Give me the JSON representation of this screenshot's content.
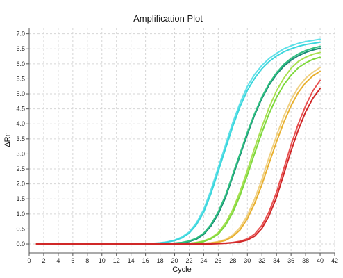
{
  "chart_data": {
    "type": "line",
    "title": "Amplification Plot",
    "xlabel": "Cycle",
    "ylabel": "ΔRn",
    "xlim": [
      0,
      42
    ],
    "ylim": [
      -0.3,
      7.2
    ],
    "xticks": [
      0,
      2,
      4,
      6,
      8,
      10,
      12,
      14,
      16,
      18,
      20,
      22,
      24,
      26,
      28,
      30,
      32,
      34,
      36,
      38,
      40,
      42
    ],
    "yticks": [
      0.0,
      0.5,
      1.0,
      1.5,
      2.0,
      2.5,
      3.0,
      3.5,
      4.0,
      4.5,
      5.0,
      5.5,
      6.0,
      6.5,
      7.0
    ],
    "grid": true,
    "series": [
      {
        "color": "#5ee0e8",
        "x": [
          1,
          2,
          3,
          4,
          5,
          6,
          7,
          8,
          9,
          10,
          11,
          12,
          13,
          14,
          15,
          16,
          17,
          18,
          19,
          20,
          21,
          22,
          23,
          24,
          25,
          26,
          27,
          28,
          29,
          30,
          31,
          32,
          33,
          34,
          35,
          36,
          37,
          38,
          39,
          40
        ],
        "values": [
          0,
          0,
          0,
          0,
          0,
          0,
          0,
          0,
          0,
          0,
          0,
          0,
          0,
          0,
          0,
          0,
          0.02,
          0.04,
          0.07,
          0.13,
          0.23,
          0.4,
          0.7,
          1.15,
          1.8,
          2.55,
          3.3,
          4.05,
          4.7,
          5.25,
          5.65,
          5.95,
          6.18,
          6.35,
          6.5,
          6.6,
          6.68,
          6.74,
          6.78,
          6.82
        ]
      },
      {
        "color": "#3ad6dc",
        "x": [
          1,
          2,
          3,
          4,
          5,
          6,
          7,
          8,
          9,
          10,
          11,
          12,
          13,
          14,
          15,
          16,
          17,
          18,
          19,
          20,
          21,
          22,
          23,
          24,
          25,
          26,
          27,
          28,
          29,
          30,
          31,
          32,
          33,
          34,
          35,
          36,
          37,
          38,
          39,
          40
        ],
        "values": [
          0,
          0,
          0,
          0,
          0,
          0,
          0,
          0,
          0,
          0,
          0,
          0,
          0,
          0,
          0,
          0,
          0.01,
          0.03,
          0.06,
          0.11,
          0.2,
          0.36,
          0.64,
          1.06,
          1.68,
          2.42,
          3.18,
          3.92,
          4.58,
          5.12,
          5.52,
          5.84,
          6.08,
          6.26,
          6.4,
          6.5,
          6.58,
          6.64,
          6.68,
          6.72
        ]
      },
      {
        "color": "#1a8a74",
        "x": [
          1,
          2,
          3,
          4,
          5,
          6,
          7,
          8,
          9,
          10,
          11,
          12,
          13,
          14,
          15,
          16,
          17,
          18,
          19,
          20,
          21,
          22,
          23,
          24,
          25,
          26,
          27,
          28,
          29,
          30,
          31,
          32,
          33,
          34,
          35,
          36,
          37,
          38,
          39,
          40
        ],
        "values": [
          0,
          0,
          0,
          0,
          0,
          0,
          0,
          0,
          0,
          0,
          0,
          0,
          0,
          0,
          0,
          0,
          0,
          0,
          0.01,
          0.02,
          0.04,
          0.08,
          0.16,
          0.32,
          0.6,
          1.0,
          1.55,
          2.25,
          2.95,
          3.65,
          4.3,
          4.85,
          5.3,
          5.65,
          5.92,
          6.12,
          6.27,
          6.38,
          6.46,
          6.52
        ]
      },
      {
        "color": "#2ec080",
        "x": [
          1,
          2,
          3,
          4,
          5,
          6,
          7,
          8,
          9,
          10,
          11,
          12,
          13,
          14,
          15,
          16,
          17,
          18,
          19,
          20,
          21,
          22,
          23,
          24,
          25,
          26,
          27,
          28,
          29,
          30,
          31,
          32,
          33,
          34,
          35,
          36,
          37,
          38,
          39,
          40
        ],
        "values": [
          0,
          0,
          0,
          0,
          0,
          0,
          0,
          0,
          0,
          0,
          0,
          0,
          0,
          0,
          0,
          0,
          0,
          0,
          0.01,
          0.03,
          0.05,
          0.1,
          0.19,
          0.36,
          0.65,
          1.07,
          1.62,
          2.32,
          3.02,
          3.72,
          4.35,
          4.9,
          5.35,
          5.7,
          5.98,
          6.18,
          6.33,
          6.44,
          6.52,
          6.58
        ]
      },
      {
        "color": "#a8e050",
        "x": [
          1,
          2,
          3,
          4,
          5,
          6,
          7,
          8,
          9,
          10,
          11,
          12,
          13,
          14,
          15,
          16,
          17,
          18,
          19,
          20,
          21,
          22,
          23,
          24,
          25,
          26,
          27,
          28,
          29,
          30,
          31,
          32,
          33,
          34,
          35,
          36,
          37,
          38,
          39,
          40
        ],
        "values": [
          0,
          0,
          0,
          0,
          0,
          0,
          0,
          0,
          0,
          0,
          0,
          0,
          0,
          0,
          0,
          0,
          0,
          0,
          0,
          0,
          0.01,
          0.02,
          0.05,
          0.1,
          0.2,
          0.38,
          0.7,
          1.15,
          1.75,
          2.45,
          3.2,
          3.9,
          4.55,
          5.1,
          5.52,
          5.85,
          6.08,
          6.22,
          6.32,
          6.38
        ]
      },
      {
        "color": "#7ed83c",
        "x": [
          1,
          2,
          3,
          4,
          5,
          6,
          7,
          8,
          9,
          10,
          11,
          12,
          13,
          14,
          15,
          16,
          17,
          18,
          19,
          20,
          21,
          22,
          23,
          24,
          25,
          26,
          27,
          28,
          29,
          30,
          31,
          32,
          33,
          34,
          35,
          36,
          37,
          38,
          39,
          40
        ],
        "values": [
          0,
          0,
          0,
          0,
          0,
          0,
          0,
          0,
          0,
          0,
          0,
          0,
          0,
          0,
          0,
          0,
          0,
          0,
          0,
          0,
          0.01,
          0.02,
          0.04,
          0.08,
          0.17,
          0.33,
          0.62,
          1.05,
          1.62,
          2.3,
          3.02,
          3.72,
          4.35,
          4.88,
          5.3,
          5.62,
          5.87,
          6.03,
          6.15,
          6.22
        ]
      },
      {
        "color": "#f0d080",
        "x": [
          1,
          2,
          3,
          4,
          5,
          6,
          7,
          8,
          9,
          10,
          11,
          12,
          13,
          14,
          15,
          16,
          17,
          18,
          19,
          20,
          21,
          22,
          23,
          24,
          25,
          26,
          27,
          28,
          29,
          30,
          31,
          32,
          33,
          34,
          35,
          36,
          37,
          38,
          39,
          40
        ],
        "values": [
          0,
          0,
          0,
          0,
          0,
          0,
          0,
          0,
          0,
          0,
          0,
          0,
          0,
          0,
          0,
          0,
          0,
          0,
          0,
          0,
          0,
          0,
          0.01,
          0.02,
          0.04,
          0.08,
          0.15,
          0.3,
          0.55,
          0.95,
          1.5,
          2.15,
          2.9,
          3.6,
          4.25,
          4.8,
          5.22,
          5.52,
          5.72,
          5.88
        ]
      },
      {
        "color": "#e8b030",
        "x": [
          1,
          2,
          3,
          4,
          5,
          6,
          7,
          8,
          9,
          10,
          11,
          12,
          13,
          14,
          15,
          16,
          17,
          18,
          19,
          20,
          21,
          22,
          23,
          24,
          25,
          26,
          27,
          28,
          29,
          30,
          31,
          32,
          33,
          34,
          35,
          36,
          37,
          38,
          39,
          40
        ],
        "values": [
          0,
          0,
          0,
          0,
          0,
          0,
          0,
          0,
          0,
          0,
          0,
          0,
          0,
          0,
          0,
          0,
          0,
          0,
          0,
          0,
          0,
          0,
          0.01,
          0.02,
          0.03,
          0.06,
          0.12,
          0.25,
          0.47,
          0.84,
          1.35,
          1.98,
          2.7,
          3.4,
          4.05,
          4.6,
          5.05,
          5.37,
          5.6,
          5.75
        ]
      },
      {
        "color": "#e85050",
        "x": [
          1,
          2,
          3,
          4,
          5,
          6,
          7,
          8,
          9,
          10,
          11,
          12,
          13,
          14,
          15,
          16,
          17,
          18,
          19,
          20,
          21,
          22,
          23,
          24,
          25,
          26,
          27,
          28,
          29,
          30,
          31,
          32,
          33,
          34,
          35,
          36,
          37,
          38,
          39,
          40
        ],
        "values": [
          0,
          0,
          0,
          0,
          0,
          0,
          0,
          0,
          0,
          0,
          0,
          0,
          0,
          0,
          0,
          0,
          0,
          0,
          0,
          0,
          0,
          0,
          0,
          0,
          0.01,
          0.02,
          0.03,
          0.05,
          0.09,
          0.17,
          0.33,
          0.62,
          1.08,
          1.72,
          2.5,
          3.3,
          4.0,
          4.6,
          5.1,
          5.45
        ]
      },
      {
        "color": "#d02828",
        "x": [
          1,
          2,
          3,
          4,
          5,
          6,
          7,
          8,
          9,
          10,
          11,
          12,
          13,
          14,
          15,
          16,
          17,
          18,
          19,
          20,
          21,
          22,
          23,
          24,
          25,
          26,
          27,
          28,
          29,
          30,
          31,
          32,
          33,
          34,
          35,
          36,
          37,
          38,
          39,
          40
        ],
        "values": [
          0,
          0,
          0,
          0,
          0,
          0,
          0,
          0,
          0,
          0,
          0,
          0,
          0,
          0,
          0,
          0,
          0,
          0,
          0,
          0,
          0,
          0,
          0,
          0,
          0,
          0.01,
          0.02,
          0.04,
          0.07,
          0.13,
          0.26,
          0.52,
          0.95,
          1.55,
          2.32,
          3.1,
          3.8,
          4.4,
          4.85,
          5.18
        ]
      }
    ]
  }
}
